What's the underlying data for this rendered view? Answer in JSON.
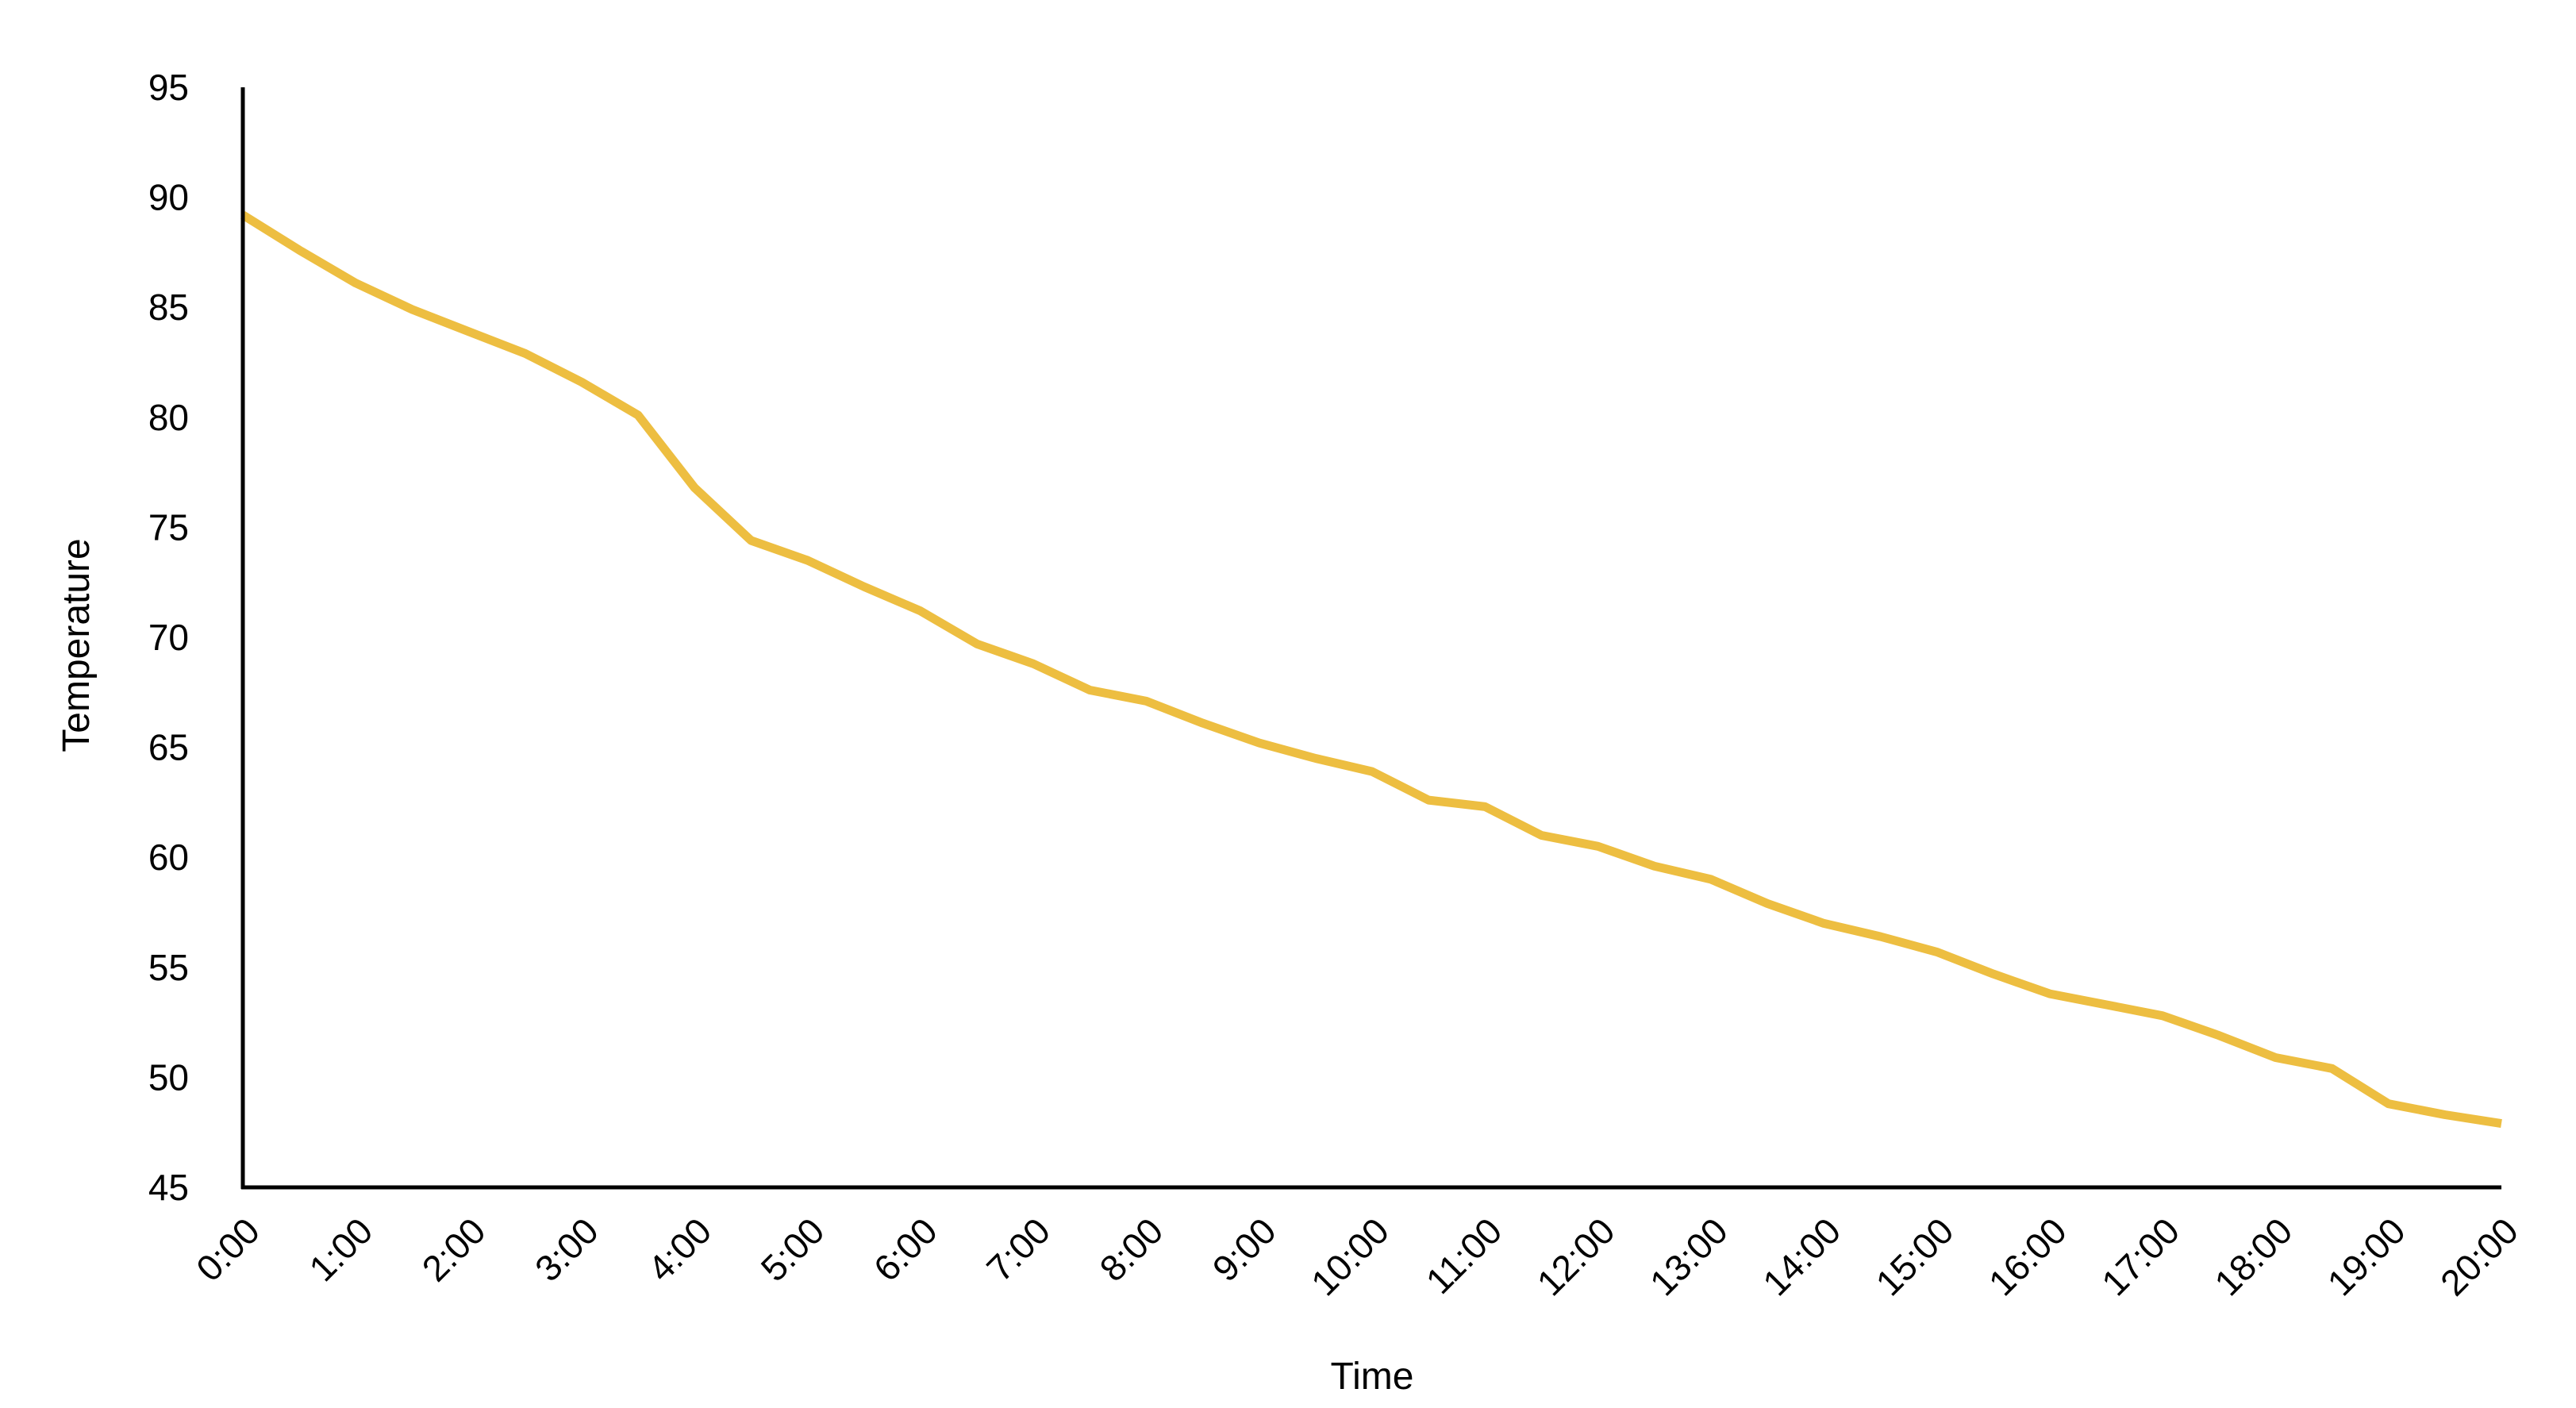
{
  "chart_data": {
    "type": "line",
    "title": "",
    "xlabel": "Time",
    "ylabel": "Temperature",
    "ylim": [
      45,
      95
    ],
    "yticks": [
      45,
      50,
      55,
      60,
      65,
      70,
      75,
      80,
      85,
      90,
      95
    ],
    "xlim": [
      0,
      20
    ],
    "xticks": [
      {
        "value": 0,
        "label": "0:00"
      },
      {
        "value": 1,
        "label": "1:00"
      },
      {
        "value": 2,
        "label": "2:00"
      },
      {
        "value": 3,
        "label": "3:00"
      },
      {
        "value": 4,
        "label": "4:00"
      },
      {
        "value": 5,
        "label": "5:00"
      },
      {
        "value": 6,
        "label": "6:00"
      },
      {
        "value": 7,
        "label": "7:00"
      },
      {
        "value": 8,
        "label": "8:00"
      },
      {
        "value": 9,
        "label": "9:00"
      },
      {
        "value": 10,
        "label": "10:00"
      },
      {
        "value": 11,
        "label": "11:00"
      },
      {
        "value": 12,
        "label": "12:00"
      },
      {
        "value": 13,
        "label": "13:00"
      },
      {
        "value": 14,
        "label": "14:00"
      },
      {
        "value": 15,
        "label": "15:00"
      },
      {
        "value": 16,
        "label": "16:00"
      },
      {
        "value": 17,
        "label": "17:00"
      },
      {
        "value": 18,
        "label": "18:00"
      },
      {
        "value": 19,
        "label": "19:00"
      },
      {
        "value": 20,
        "label": "20:00"
      }
    ],
    "grid": false,
    "legend": "none",
    "series": [
      {
        "color": "#EDBE41",
        "x": [
          0,
          0.5,
          1,
          1.5,
          2,
          2.5,
          3,
          3.5,
          4,
          4.5,
          5,
          5.5,
          6,
          6.5,
          7,
          7.5,
          8,
          8.5,
          9,
          9.5,
          10,
          10.5,
          11,
          11.5,
          12,
          12.5,
          13,
          13.5,
          14,
          14.5,
          15,
          15.5,
          16,
          16.5,
          17,
          17.5,
          18,
          18.5,
          19,
          19.5,
          20
        ],
        "values": [
          89.2,
          87.6,
          86.1,
          84.9,
          83.9,
          82.9,
          81.6,
          80.1,
          76.8,
          74.4,
          73.5,
          72.3,
          71.2,
          69.7,
          68.8,
          67.6,
          67.1,
          66.1,
          65.2,
          64.5,
          63.9,
          62.6,
          62.3,
          61.0,
          60.5,
          59.6,
          59.0,
          57.9,
          57.0,
          56.4,
          55.7,
          54.7,
          53.8,
          53.3,
          52.8,
          51.9,
          50.9,
          50.4,
          48.8,
          48.3,
          47.9
        ]
      }
    ]
  }
}
